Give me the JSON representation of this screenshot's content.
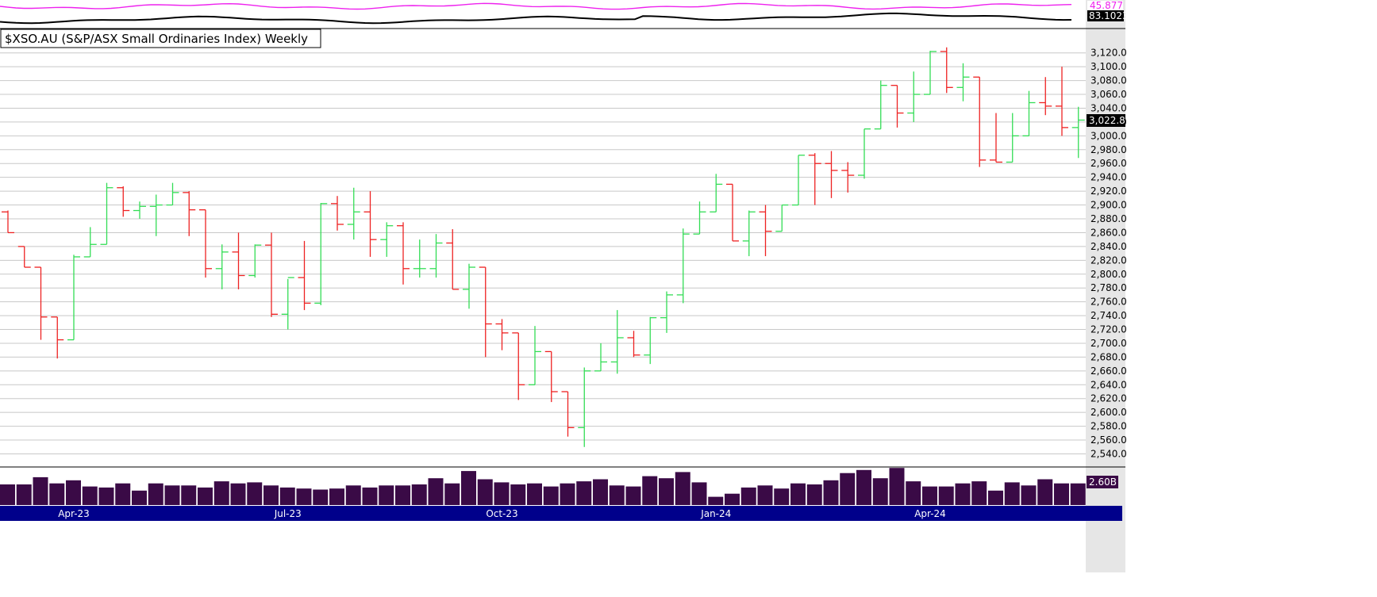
{
  "chart_data": {
    "type": "ohlc",
    "title": "$XSO.AU (S&P/ASX Small Ordinaries Index) Weekly",
    "ylim": [
      2530,
      3140
    ],
    "y_ticks": [
      2540,
      2560,
      2580,
      2600,
      2620,
      2640,
      2660,
      2680,
      2700,
      2720,
      2740,
      2760,
      2780,
      2800,
      2820,
      2840,
      2860,
      2880,
      2900,
      2920,
      2940,
      2960,
      2980,
      3000,
      3020,
      3040,
      3060,
      3080,
      3100,
      3120
    ],
    "y_tick_labels": [
      "2,540.0",
      "2,560.0",
      "2,580.0",
      "2,600.0",
      "2,620.0",
      "2,640.0",
      "2,660.0",
      "2,680.0",
      "2,700.0",
      "2,720.0",
      "2,740.0",
      "2,760.0",
      "2,780.0",
      "2,800.0",
      "2,820.0",
      "2,840.0",
      "2,860.0",
      "2,880.0",
      "2,900.0",
      "2,920.0",
      "2,940.0",
      "2,960.0",
      "2,980.0",
      "3,000.0",
      "3,020.0",
      "3,040.0",
      "3,060.0",
      "3,080.0",
      "3,100.0",
      "3,120.0"
    ],
    "last_price_label": "3,022.8",
    "last_price": 3022.8,
    "x_labels": [
      {
        "label": "Apr-23",
        "bar": 4
      },
      {
        "label": "Jul-23",
        "bar": 17
      },
      {
        "label": "Oct-23",
        "bar": 30
      },
      {
        "label": "Jan-24",
        "bar": 43
      },
      {
        "label": "Apr-24",
        "bar": 56
      }
    ],
    "ohlc": [
      [
        2890,
        2892,
        2860,
        2860
      ],
      [
        2840,
        2840,
        2810,
        2810
      ],
      [
        2810,
        2810,
        2705,
        2738
      ],
      [
        2738,
        2738,
        2678,
        2705
      ],
      [
        2705,
        2828,
        2705,
        2825
      ],
      [
        2825,
        2868,
        2825,
        2843
      ],
      [
        2843,
        2932,
        2843,
        2925
      ],
      [
        2925,
        2927,
        2883,
        2892
      ],
      [
        2892,
        2905,
        2880,
        2898
      ],
      [
        2898,
        2915,
        2855,
        2900
      ],
      [
        2900,
        2932,
        2900,
        2918
      ],
      [
        2918,
        2920,
        2855,
        2893
      ],
      [
        2893,
        2893,
        2795,
        2808
      ],
      [
        2808,
        2843,
        2778,
        2832
      ],
      [
        2832,
        2860,
        2778,
        2798
      ],
      [
        2798,
        2843,
        2795,
        2842
      ],
      [
        2842,
        2860,
        2738,
        2742
      ],
      [
        2742,
        2793,
        2720,
        2795
      ],
      [
        2795,
        2848,
        2748,
        2758
      ],
      [
        2758,
        2903,
        2755,
        2902
      ],
      [
        2902,
        2913,
        2863,
        2872
      ],
      [
        2872,
        2925,
        2850,
        2890
      ],
      [
        2890,
        2920,
        2825,
        2850
      ],
      [
        2850,
        2875,
        2825,
        2870
      ],
      [
        2870,
        2875,
        2785,
        2808
      ],
      [
        2808,
        2850,
        2795,
        2808
      ],
      [
        2808,
        2858,
        2795,
        2845
      ],
      [
        2845,
        2865,
        2778,
        2778
      ],
      [
        2778,
        2815,
        2750,
        2810
      ],
      [
        2810,
        2810,
        2680,
        2728
      ],
      [
        2728,
        2735,
        2690,
        2715
      ],
      [
        2715,
        2715,
        2618,
        2640
      ],
      [
        2640,
        2725,
        2640,
        2688
      ],
      [
        2688,
        2688,
        2615,
        2630
      ],
      [
        2630,
        2630,
        2565,
        2578
      ],
      [
        2578,
        2665,
        2550,
        2660
      ],
      [
        2660,
        2700,
        2660,
        2673
      ],
      [
        2673,
        2748,
        2656,
        2708
      ],
      [
        2708,
        2718,
        2680,
        2683
      ],
      [
        2683,
        2738,
        2670,
        2737
      ],
      [
        2737,
        2775,
        2715,
        2770
      ],
      [
        2770,
        2866,
        2758,
        2858
      ],
      [
        2858,
        2905,
        2858,
        2890
      ],
      [
        2890,
        2945,
        2890,
        2930
      ],
      [
        2930,
        2930,
        2848,
        2848
      ],
      [
        2848,
        2892,
        2826,
        2890
      ],
      [
        2890,
        2900,
        2826,
        2862
      ],
      [
        2862,
        2900,
        2862,
        2900
      ],
      [
        2900,
        2972,
        2900,
        2972
      ],
      [
        2972,
        2975,
        2900,
        2960
      ],
      [
        2960,
        2978,
        2910,
        2950
      ],
      [
        2950,
        2962,
        2918,
        2943
      ],
      [
        2943,
        3010,
        2938,
        3010
      ],
      [
        3010,
        3080,
        3010,
        3073
      ],
      [
        3073,
        3073,
        3012,
        3033
      ],
      [
        3033,
        3093,
        3020,
        3060
      ],
      [
        3060,
        3123,
        3060,
        3122
      ],
      [
        3122,
        3128,
        3062,
        3070
      ],
      [
        3070,
        3105,
        3050,
        3085
      ],
      [
        3085,
        3085,
        2955,
        2965
      ],
      [
        2965,
        3033,
        2962,
        2962
      ],
      [
        2962,
        3033,
        2962,
        3000
      ],
      [
        3000,
        3065,
        3000,
        3048
      ],
      [
        3048,
        3085,
        3030,
        3043
      ],
      [
        3043,
        3100,
        3000,
        3012
      ],
      [
        3012,
        3042,
        2968,
        3022.8
      ]
    ],
    "volume": [
      20,
      20,
      27,
      21,
      24,
      18,
      17,
      21,
      14,
      21,
      19,
      19,
      17,
      23,
      21,
      22,
      19,
      17,
      16,
      15,
      16,
      19,
      17,
      19,
      19,
      20,
      26,
      21,
      33,
      25,
      22,
      20,
      21,
      18,
      21,
      23,
      25,
      19,
      18,
      28,
      26,
      32,
      22,
      8,
      11,
      17,
      19,
      16,
      21,
      20,
      24,
      31,
      34,
      26,
      36,
      23,
      18,
      18,
      21,
      23,
      14,
      22,
      19,
      25,
      21,
      21
    ],
    "volume_label": "2.60B",
    "indicator": {
      "label_1": "45.877",
      "label_2": "83.1023",
      "color_1": "#ee22ee",
      "color_2": "#000000"
    },
    "colors": {
      "up": "#33dd55",
      "down": "#ee2222",
      "volume": "#3a0a46",
      "date_bar": "#00008b",
      "grid": "#c8c8c8",
      "axis_bg": "#e6e6e6"
    }
  }
}
